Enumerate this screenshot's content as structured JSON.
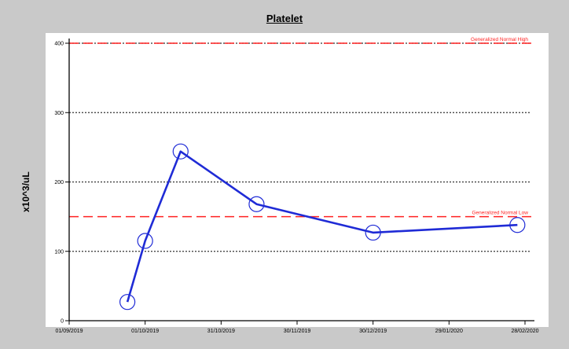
{
  "chart_data": {
    "type": "line",
    "title": "Platelet",
    "xlabel": "",
    "ylabel": "x10^3/uL",
    "x_ticks": [
      "01/09/2019",
      "01/10/2019",
      "31/10/2019",
      "30/11/2019",
      "30/12/2019",
      "29/01/2020",
      "28/02/2020"
    ],
    "y_ticks": [
      0,
      100,
      200,
      300,
      400
    ],
    "ylim": [
      0,
      400
    ],
    "xlim": [
      "2019-09-01",
      "2020-02-28"
    ],
    "grid": true,
    "series": [
      {
        "color": "#1f2bd6",
        "points": [
          {
            "date": "2019-09-24",
            "value": 27
          },
          {
            "date": "2019-10-01",
            "value": 115
          },
          {
            "date": "2019-10-15",
            "value": 244
          },
          {
            "date": "2019-11-14",
            "value": 168
          },
          {
            "date": "2019-12-30",
            "value": 127
          },
          {
            "date": "2020-02-25",
            "value": 138
          }
        ]
      }
    ],
    "reference_lines": [
      {
        "label": "Generalized Normal High",
        "value": 400,
        "color": "#ff2222"
      },
      {
        "label": "Generalized Normal Low",
        "value": 150,
        "color": "#ff2222"
      }
    ]
  }
}
